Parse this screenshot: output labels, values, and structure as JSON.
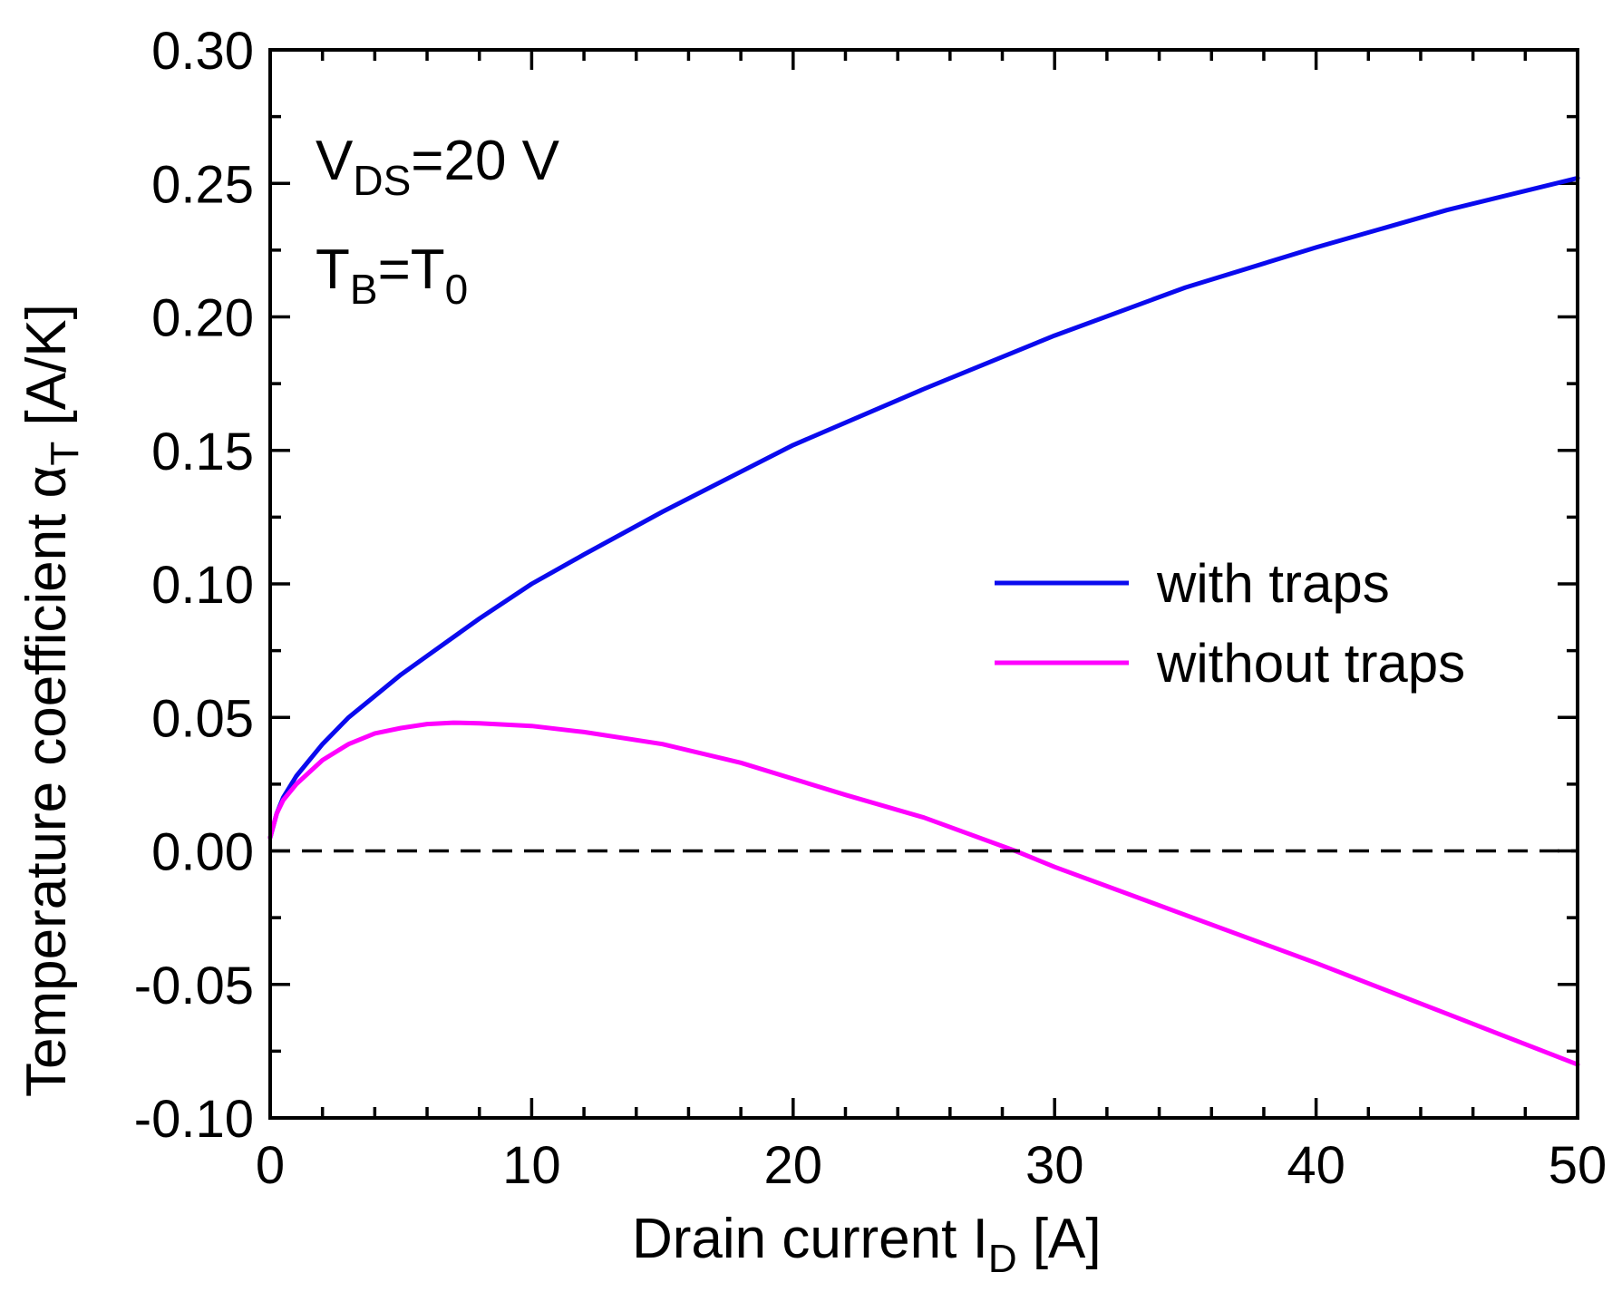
{
  "chart_data": {
    "type": "line",
    "title": "",
    "xlabel": {
      "main": "Drain current I",
      "sub": "D",
      "unit": " [A]"
    },
    "ylabel": {
      "main": "Temperature coefficient α",
      "sub": "T",
      "unit": " [A/K]"
    },
    "xlim": [
      0,
      50
    ],
    "ylim": [
      -0.1,
      0.3
    ],
    "x_ticks": [
      0,
      10,
      20,
      30,
      40,
      50
    ],
    "x_tick_labels": [
      "0",
      "10",
      "20",
      "30",
      "40",
      "50"
    ],
    "y_ticks": [
      -0.1,
      -0.05,
      0.0,
      0.05,
      0.1,
      0.15,
      0.2,
      0.25,
      0.3
    ],
    "y_tick_labels": [
      "-0.10",
      "-0.05",
      "0.00",
      "0.05",
      "0.10",
      "0.15",
      "0.20",
      "0.25",
      "0.30"
    ],
    "grid": false,
    "legend_position": "center-right",
    "annotations": [
      {
        "main": "V",
        "sub": "DS",
        "rest": "=20 V"
      },
      {
        "main": "T",
        "sub": "B",
        "mid": "=T",
        "sub2": "0"
      }
    ],
    "reference_line": {
      "y": 0.0,
      "style": "dashed",
      "color": "#000000"
    },
    "series": [
      {
        "name": "with traps",
        "color": "#0a0aee",
        "x": [
          0,
          0.25,
          0.5,
          1,
          2,
          3,
          4,
          5,
          6,
          8,
          10,
          12,
          15,
          18,
          20,
          25,
          30,
          35,
          40,
          45,
          50
        ],
        "y": [
          0.005,
          0.014,
          0.02,
          0.028,
          0.04,
          0.05,
          0.058,
          0.066,
          0.073,
          0.087,
          0.1,
          0.111,
          0.127,
          0.142,
          0.152,
          0.173,
          0.193,
          0.211,
          0.226,
          0.24,
          0.252
        ]
      },
      {
        "name": "without traps",
        "color": "#ff00ff",
        "x": [
          0,
          0.25,
          0.5,
          1,
          2,
          3,
          4,
          5,
          6,
          7,
          8,
          10,
          12,
          15,
          18,
          20,
          22,
          25,
          28.5,
          30,
          35,
          40,
          45,
          50
        ],
        "y": [
          0.005,
          0.014,
          0.019,
          0.025,
          0.034,
          0.04,
          0.044,
          0.046,
          0.0475,
          0.048,
          0.0478,
          0.0468,
          0.0445,
          0.04,
          0.033,
          0.027,
          0.021,
          0.0125,
          0.0,
          -0.006,
          -0.024,
          -0.042,
          -0.061,
          -0.08
        ]
      }
    ]
  }
}
